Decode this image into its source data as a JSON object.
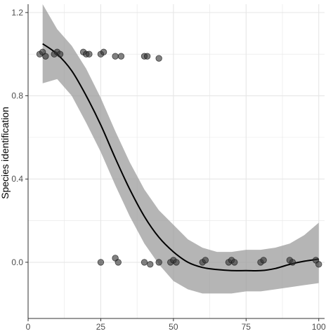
{
  "chart_data": {
    "type": "scatter",
    "title": "",
    "xlabel": "",
    "ylabel": "Species identification",
    "xlim": [
      0,
      102
    ],
    "ylim": [
      -0.27,
      1.24
    ],
    "grid": true,
    "x_ticks": [
      {
        "value": 0,
        "label": "0"
      },
      {
        "value": 25,
        "label": "25"
      },
      {
        "value": 50,
        "label": "50"
      },
      {
        "value": 75,
        "label": "75"
      },
      {
        "value": 100,
        "label": "100"
      }
    ],
    "y_ticks": [
      {
        "value": 0.0,
        "label": "0.0"
      },
      {
        "value": 0.4,
        "label": "0.4"
      },
      {
        "value": 0.8,
        "label": "0.8"
      },
      {
        "value": 1.2,
        "label": "1.2"
      }
    ],
    "colors": {
      "points": "#333333",
      "smooth_line": "#000000",
      "confidence_band": "#999999",
      "grid": "#e6e6e6",
      "axis": "#333333"
    },
    "points": [
      {
        "x": 4,
        "y": 1.0
      },
      {
        "x": 5,
        "y": 1.01
      },
      {
        "x": 6,
        "y": 0.99
      },
      {
        "x": 9,
        "y": 1.0
      },
      {
        "x": 10,
        "y": 1.01
      },
      {
        "x": 11,
        "y": 1.0
      },
      {
        "x": 19,
        "y": 1.01
      },
      {
        "x": 20,
        "y": 1.0
      },
      {
        "x": 21,
        "y": 1.0
      },
      {
        "x": 25,
        "y": 1.0
      },
      {
        "x": 26,
        "y": 1.01
      },
      {
        "x": 30,
        "y": 0.99
      },
      {
        "x": 32,
        "y": 0.99
      },
      {
        "x": 40,
        "y": 0.99
      },
      {
        "x": 41,
        "y": 0.99
      },
      {
        "x": 45,
        "y": 0.98
      },
      {
        "x": 25,
        "y": 0.0
      },
      {
        "x": 30,
        "y": 0.02
      },
      {
        "x": 31,
        "y": 0.0
      },
      {
        "x": 40,
        "y": 0.0
      },
      {
        "x": 42,
        "y": -0.01
      },
      {
        "x": 45,
        "y": 0.0
      },
      {
        "x": 49,
        "y": 0.0
      },
      {
        "x": 50,
        "y": 0.01
      },
      {
        "x": 51,
        "y": 0.0
      },
      {
        "x": 60,
        "y": 0.0
      },
      {
        "x": 61,
        "y": 0.01
      },
      {
        "x": 69,
        "y": 0.0
      },
      {
        "x": 70,
        "y": 0.01
      },
      {
        "x": 71,
        "y": 0.0
      },
      {
        "x": 80,
        "y": 0.0
      },
      {
        "x": 81,
        "y": 0.01
      },
      {
        "x": 90,
        "y": 0.01
      },
      {
        "x": 91,
        "y": 0.0
      },
      {
        "x": 99,
        "y": 0.01
      },
      {
        "x": 100,
        "y": -0.01
      }
    ],
    "smooth": {
      "x": [
        5,
        10,
        15,
        20,
        25,
        30,
        35,
        40,
        45,
        50,
        55,
        60,
        65,
        70,
        75,
        80,
        85,
        90,
        95,
        100
      ],
      "y": [
        1.05,
        1.0,
        0.92,
        0.8,
        0.66,
        0.5,
        0.35,
        0.22,
        0.12,
        0.05,
        0.0,
        -0.025,
        -0.035,
        -0.04,
        -0.04,
        -0.04,
        -0.03,
        -0.01,
        0.005,
        0.015
      ],
      "lower": [
        0.86,
        0.88,
        0.8,
        0.67,
        0.53,
        0.37,
        0.22,
        0.09,
        -0.01,
        -0.09,
        -0.13,
        -0.15,
        -0.15,
        -0.15,
        -0.14,
        -0.14,
        -0.13,
        -0.12,
        -0.11,
        -0.1
      ],
      "upper": [
        1.24,
        1.12,
        1.04,
        0.93,
        0.79,
        0.63,
        0.48,
        0.35,
        0.25,
        0.18,
        0.11,
        0.07,
        0.05,
        0.05,
        0.06,
        0.06,
        0.07,
        0.09,
        0.13,
        0.19
      ]
    }
  }
}
